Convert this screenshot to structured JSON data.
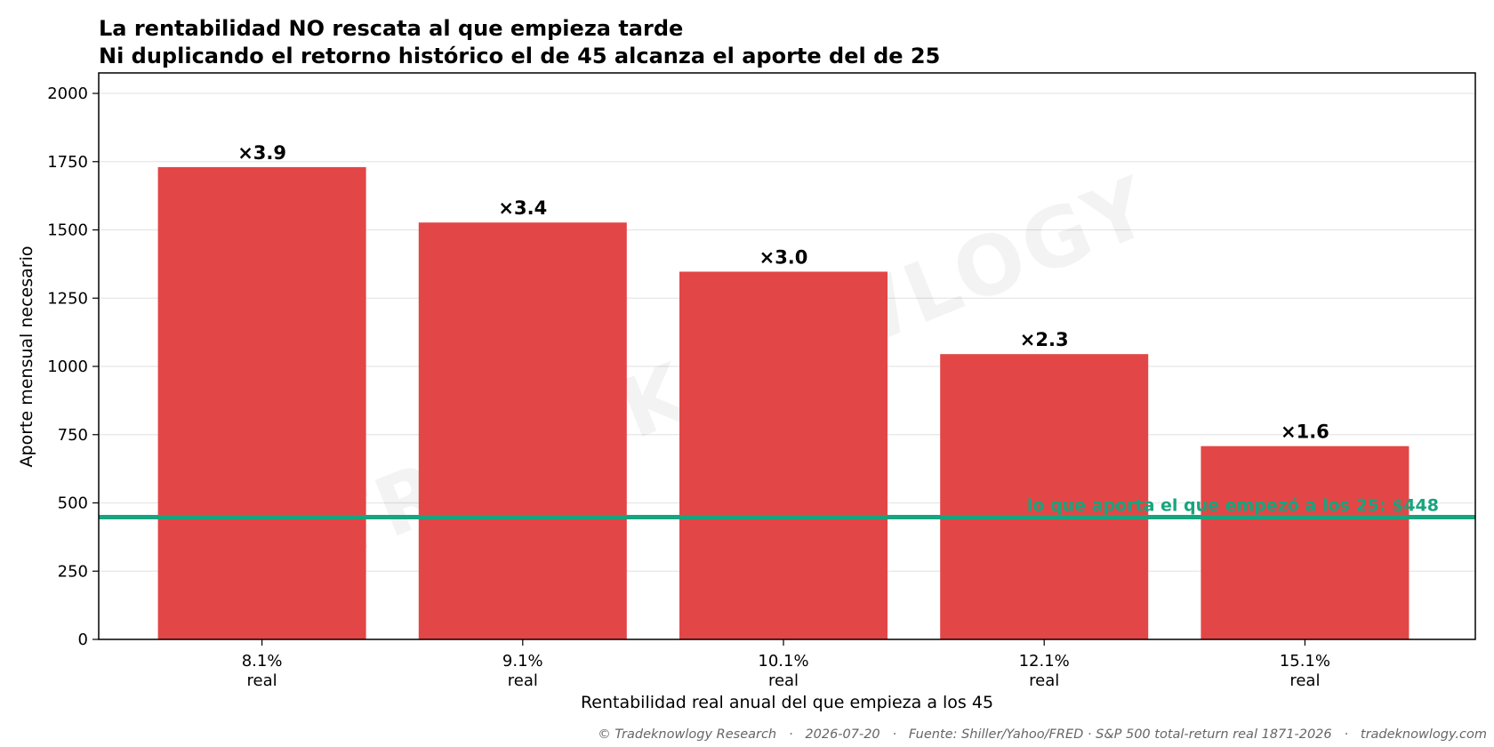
{
  "chart_data": {
    "type": "bar",
    "title": "La rentabilidad NO rescata al que empieza tarde",
    "subtitle": "Ni duplicando el retorno histórico el de 45 alcanza el aporte del de 25",
    "xlabel": "Rentabilidad real anual del que empieza a los 45",
    "ylabel": "Aporte mensual necesario",
    "categories": [
      "8.1%\nreal",
      "9.1%\nreal",
      "10.1%\nreal",
      "12.1%\nreal",
      "15.1%\nreal"
    ],
    "values": [
      1730,
      1527,
      1347,
      1045,
      708
    ],
    "bar_labels": [
      "×3.9",
      "×3.4",
      "×3.0",
      "×2.3",
      "×1.6"
    ],
    "ylim": [
      0,
      2075
    ],
    "yticks": [
      0,
      250,
      500,
      750,
      1000,
      1250,
      1500,
      1750,
      2000
    ],
    "grid": "y",
    "bar_color": "#e34646",
    "reference_line": {
      "value": 448,
      "label": "lo que aporta el que empezó a los 25: $448",
      "color": "#17a57e"
    }
  },
  "watermark": "TRADEKNOWLOGY",
  "footer": "© Tradeknowlogy Research   ·   2026-07-20   ·   Fuente: Shiller/Yahoo/FRED · S&P 500 total-return real 1871-2026   ·   tradeknowlogy.com"
}
